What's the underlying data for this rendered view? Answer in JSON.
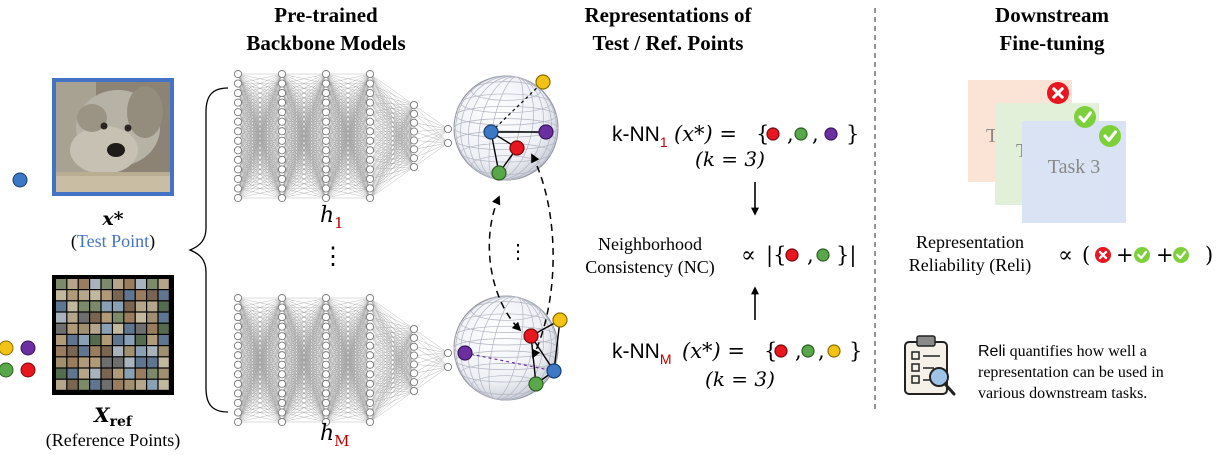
{
  "headers": {
    "backbone": [
      "Pre-trained",
      "Backbone Models"
    ],
    "representations": [
      "Representations of",
      "Test / Ref. Points"
    ],
    "downstream": [
      "Downstream",
      "Fine-tuning"
    ]
  },
  "test_point": {
    "symbol": "x*",
    "label": "Test Point"
  },
  "reference_points": {
    "symbol": "X",
    "subscript": "ref",
    "label": "Reference Points"
  },
  "models": {
    "h_symbol": "h",
    "first_index": "1",
    "last_index": "M",
    "vertical_ellipsis": "⋮"
  },
  "knn": {
    "prefix": "k-NN",
    "first_index": "1",
    "last_index": "M",
    "arg": "(x*) =",
    "k_note": "(k = 3)",
    "set_1": [
      "red",
      "green",
      "purple"
    ],
    "set_M": [
      "red",
      "green",
      "yellow"
    ]
  },
  "nc": {
    "line1": "Neighborhood",
    "line2": "Consistency (NC)",
    "proportional": "∝",
    "set": [
      "red",
      "green"
    ]
  },
  "reli": {
    "line1": "Representation",
    "line2": "Reliability (Reli)",
    "proportional": "∝"
  },
  "tasks": {
    "task1": "T",
    "task2": "T",
    "task3": "Task 3",
    "status": [
      "fail",
      "pass",
      "pass"
    ]
  },
  "note": {
    "term": "Reli",
    "lines": [
      " quantifies how well a",
      "representation can be used in",
      "various downstream tasks."
    ]
  },
  "colors": {
    "blue": "#3d78c4",
    "red": "#e8161f",
    "green": "#5aa64a",
    "purple": "#6b2fa0",
    "yellow": "#f2c314",
    "accent_red": "#c00000",
    "test_blue": "#4472c4",
    "task1_bg": "#fbe3d6",
    "task2_bg": "#e2f0d9",
    "task3_bg": "#dae3f3",
    "check_green": "#7dd03c",
    "fail_red": "#e8161f"
  }
}
